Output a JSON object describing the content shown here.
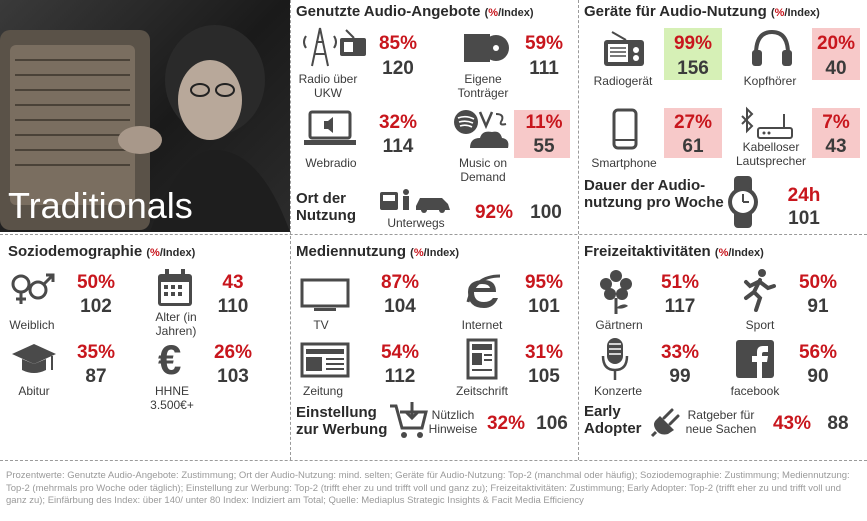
{
  "persona": {
    "title": "Traditionals"
  },
  "audio_offers": {
    "title": "Genutzte Audio-Angebote",
    "sub_open": "(",
    "sub_pct": "%",
    "sub_rest": "/Index)",
    "items": [
      {
        "label": "Radio über UKW",
        "pct": "85%",
        "idx": "120",
        "icon": "radio-tower-icon"
      },
      {
        "label": "Eigene Tonträger",
        "pct": "59%",
        "idx": "111",
        "icon": "cd-icon"
      },
      {
        "label": "Webradio",
        "pct": "32%",
        "idx": "114",
        "icon": "laptop-speaker-icon"
      },
      {
        "label": "Music on Demand",
        "pct": "11%",
        "idx": "55",
        "icon": "streaming-icon"
      }
    ],
    "place": {
      "title": "Ort der Nutzung",
      "label": "Unterwegs",
      "pct": "92%",
      "idx": "100"
    }
  },
  "devices": {
    "title": "Geräte für Audio-Nutzung",
    "sub_open": "(",
    "sub_pct": "%",
    "sub_rest": "/Index)",
    "items": [
      {
        "label": "Radiogerät",
        "pct": "99%",
        "idx": "156",
        "icon": "radio-icon"
      },
      {
        "label": "Kopfhörer",
        "pct": "20%",
        "idx": "40",
        "icon": "headphones-icon"
      },
      {
        "label": "Smartphone",
        "pct": "27%",
        "idx": "61",
        "icon": "smartphone-icon"
      },
      {
        "label": "Kabelloser Lautsprecher",
        "pct": "7%",
        "idx": "43",
        "icon": "bluetooth-speaker-icon"
      }
    ],
    "duration": {
      "title": "Dauer der Audio-nutzung pro Woche",
      "pct": "24h",
      "idx": "101"
    }
  },
  "socio": {
    "title": "Soziodemographie",
    "sub_open": "(",
    "sub_pct": "%",
    "sub_rest": "/Index)",
    "items": [
      {
        "label": "Weiblich",
        "pct": "50%",
        "idx": "102",
        "icon": "gender-icon"
      },
      {
        "label": "Alter (in Jahren)",
        "pct": "43",
        "idx": "110",
        "icon": "calendar-icon"
      },
      {
        "label": "Abitur",
        "pct": "35%",
        "idx": "87",
        "icon": "graduation-cap-icon"
      },
      {
        "label": "HHNE 3.500€+",
        "pct": "26%",
        "idx": "103",
        "icon": "euro-icon"
      }
    ]
  },
  "media": {
    "title": "Mediennutzung",
    "sub_open": "(",
    "sub_pct": "%",
    "sub_rest": "/Index)",
    "items": [
      {
        "label": "TV",
        "pct": "87%",
        "idx": "104",
        "icon": "tv-icon"
      },
      {
        "label": "Internet",
        "pct": "95%",
        "idx": "101",
        "icon": "internet-explorer-icon"
      },
      {
        "label": "Zeitung",
        "pct": "54%",
        "idx": "112",
        "icon": "newspaper-icon"
      },
      {
        "label": "Zeitschrift",
        "pct": "31%",
        "idx": "105",
        "icon": "magazine-icon"
      }
    ],
    "ads": {
      "title": "Einstellung zur Werbung",
      "label": "Nützlich Hinweise",
      "pct": "32%",
      "idx": "106"
    }
  },
  "leisure": {
    "title": "Freizeitaktivitäten",
    "sub_open": "(",
    "sub_pct": "%",
    "sub_rest": "/Index)",
    "items": [
      {
        "label": "Gärtnern",
        "pct": "51%",
        "idx": "117",
        "icon": "flower-icon"
      },
      {
        "label": "Sport",
        "pct": "50%",
        "idx": "91",
        "icon": "runner-icon"
      },
      {
        "label": "Konzerte",
        "pct": "33%",
        "idx": "99",
        "icon": "microphone-icon"
      },
      {
        "label": "facebook",
        "pct": "56%",
        "idx": "90",
        "icon": "facebook-icon"
      }
    ],
    "adopter": {
      "title": "Early Adopter",
      "label": "Ratgeber für neue Sachen",
      "pct": "43%",
      "idx": "88"
    }
  },
  "footnote": "Prozentwerte: Genutzte Audio-Angebote: Zustimmung; Ort der Audio-Nutzung: mind. selten; Geräte für Audio-Nutzung: Top-2 (manchmal oder häufig); Soziodemographie: Zustimmung; Mediennutzung: Top-2 (mehrmals pro Woche oder täglich); Einstellung zur Werbung: Top-2 (trifft eher zu und trifft voll und ganz zu); Freizeitaktivitäten: Zustimmung; Early Adopter: Top-2 (trifft eher zu und trifft voll und ganz zu); Einfärbung des Index: über 140/ unter 80 Index: Indiziert am Total; Quelle: Mediaplus Strategic Insights & Facit Media Efficiency",
  "colors": {
    "red": "#c8161d",
    "green_highlight": "#d6f0b6",
    "red_highlight": "#f7c9c9",
    "text": "#3b3b3b"
  }
}
